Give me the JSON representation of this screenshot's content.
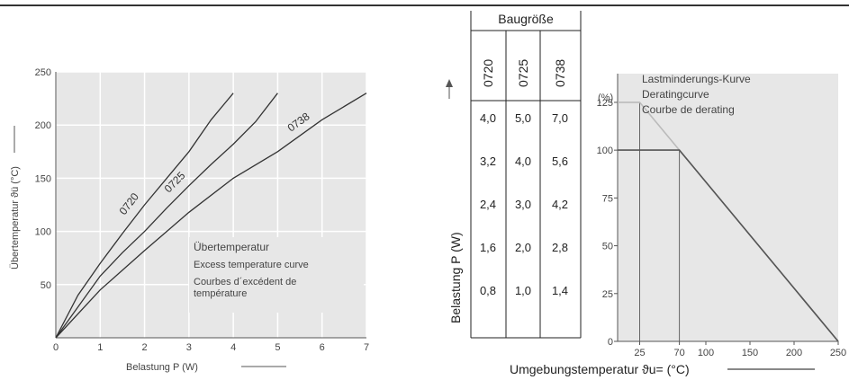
{
  "chart_data": [
    {
      "type": "line",
      "ylabel": "Übertemperatur ϑü (°C)",
      "xlabel": "Belastung P (W)",
      "xlim": [
        0,
        7
      ],
      "ylim": [
        0,
        250
      ],
      "x_ticks": [
        0,
        1,
        2,
        3,
        4,
        5,
        6,
        7
      ],
      "y_ticks": [
        50,
        100,
        150,
        200,
        250
      ],
      "grid": true,
      "series": [
        {
          "name": "0720",
          "points": [
            [
              0,
              0
            ],
            [
              0.5,
              40
            ],
            [
              1,
              70
            ],
            [
              1.5,
              98
            ],
            [
              2,
              125
            ],
            [
              2.5,
              150
            ],
            [
              3,
              175
            ],
            [
              3.5,
              205
            ],
            [
              4,
              230
            ]
          ]
        },
        {
          "name": "0725",
          "points": [
            [
              0,
              0
            ],
            [
              1,
              58
            ],
            [
              1.5,
              80
            ],
            [
              2,
              100
            ],
            [
              2.5,
              122
            ],
            [
              3,
              143
            ],
            [
              3.5,
              163
            ],
            [
              4,
              182
            ],
            [
              4.5,
              203
            ],
            [
              5,
              230
            ]
          ]
        },
        {
          "name": "0738",
          "points": [
            [
              0,
              0
            ],
            [
              1,
              45
            ],
            [
              2,
              82
            ],
            [
              3,
              118
            ],
            [
              4,
              150
            ],
            [
              5,
              175
            ],
            [
              6,
              205
            ],
            [
              7,
              230
            ]
          ]
        }
      ],
      "legend_lines": [
        "Übertemperatur",
        "Excess temperature curve",
        "Courbes d´excédent de",
        "température"
      ]
    },
    {
      "type": "table",
      "axis_label": "Belastung P (W)",
      "group_header": "Baugröße",
      "columns": [
        "0720",
        "0725",
        "0738"
      ],
      "rows": [
        [
          "4,0",
          "5,0",
          "7,0"
        ],
        [
          "3,2",
          "4,0",
          "5,6"
        ],
        [
          "2,4",
          "3,0",
          "4,2"
        ],
        [
          "1,6",
          "2,0",
          "2,8"
        ],
        [
          "0,8",
          "1,0",
          "1,4"
        ]
      ]
    },
    {
      "type": "line",
      "ylabel": "(%)",
      "xlabel": "Umgebungstemperatur ϑu= (°C)",
      "x_ticks": [
        25,
        70,
        100,
        150,
        200,
        250
      ],
      "y_ticks": [
        0,
        25,
        50,
        75,
        100,
        125
      ],
      "xlim": [
        0,
        250
      ],
      "ylim": [
        0,
        125
      ],
      "series": [
        {
          "name": "125%",
          "points": [
            [
              25,
              125
            ],
            [
              250,
              0
            ]
          ]
        },
        {
          "name": "100%",
          "points": [
            [
              70,
              100
            ],
            [
              250,
              0
            ]
          ]
        }
      ],
      "legend_lines": [
        "Lastminderungs-Kurve",
        "Deratingcurve",
        "Courbe de derating"
      ]
    }
  ]
}
